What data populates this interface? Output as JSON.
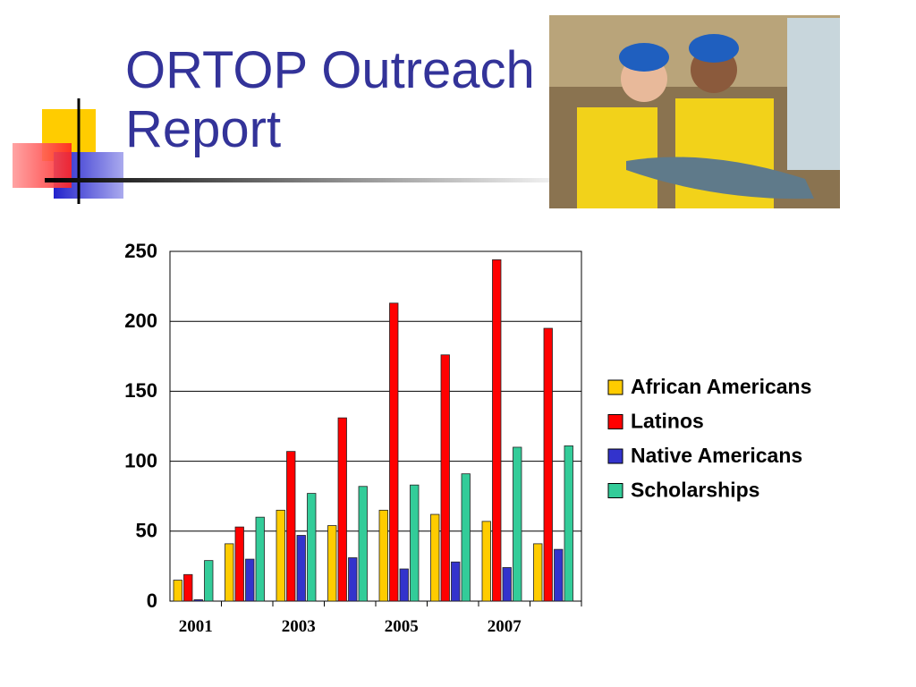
{
  "chart_data": {
    "type": "bar",
    "title": "ORTOP Outreach Report",
    "categories": [
      "2001",
      null,
      "2003",
      null,
      "2005",
      null,
      "2007",
      null
    ],
    "series": [
      {
        "name": "African Americans",
        "color": "#ffcc00",
        "values": [
          15,
          41,
          65,
          54,
          65,
          62,
          57,
          41
        ]
      },
      {
        "name": "Latinos",
        "color": "#ff0000",
        "values": [
          19,
          53,
          107,
          131,
          213,
          176,
          244,
          195
        ]
      },
      {
        "name": "Native Americans",
        "color": "#3333cc",
        "values": [
          1,
          30,
          47,
          31,
          23,
          28,
          24,
          37
        ]
      },
      {
        "name": "Scholarships",
        "color": "#33cc99",
        "values": [
          29,
          60,
          77,
          82,
          83,
          91,
          110,
          111
        ]
      }
    ],
    "ylim": [
      0,
      250
    ],
    "yticks": [
      0,
      50,
      100,
      150,
      200,
      250
    ],
    "grid": true,
    "legend": "right"
  }
}
